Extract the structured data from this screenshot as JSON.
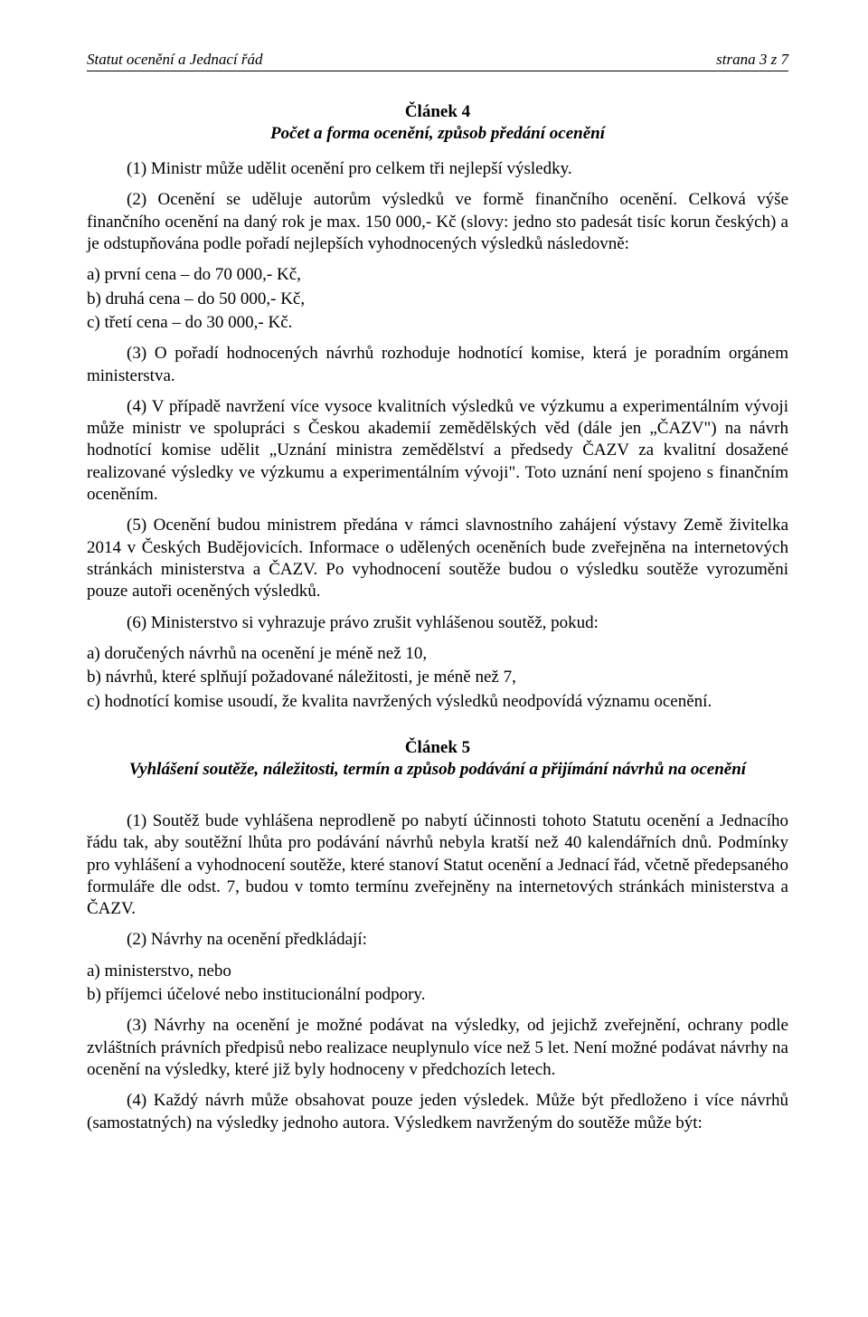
{
  "header": {
    "left": "Statut ocenění a Jednací řád",
    "right": "strana 3 z 7"
  },
  "article4": {
    "heading": "Článek 4",
    "subtitle": "Počet a forma ocenění, způsob předání ocenění",
    "p1": "(1)  Ministr může udělit ocenění pro celkem tři nejlepší výsledky.",
    "p2": "(2)  Ocenění se uděluje autorům výsledků ve formě finančního ocenění. Celková výše finančního ocenění na daný rok je max. 150 000,- Kč (slovy: jedno sto padesát tisíc korun českých) a je odstupňována podle pořadí nejlepších vyhodnocených výsledků následovně:",
    "awards": [
      "a)   první cena – do 70 000,- Kč,",
      "b)   druhá cena – do 50 000,- Kč,",
      "c)   třetí cena –   do 30 000,- Kč."
    ],
    "p3": "(3)  O pořadí hodnocených návrhů rozhoduje hodnotící komise, která je poradním orgánem ministerstva.",
    "p4": "(4)  V případě  navržení  více  vysoce  kvalitních  výsledků  ve  výzkumu a experimentálním vývoji může ministr ve spolupráci s Českou akademií zemědělských věd (dále jen „ČAZV\") na návrh hodnotící komise udělit „Uznání ministra zemědělství a předsedy ČAZV za kvalitní dosažené realizované výsledky ve výzkumu a experimentálním vývoji\". Toto uznání není spojeno s finančním oceněním.",
    "p5": "(5)  Ocenění budou ministrem předána v rámci slavnostního zahájení výstavy Země živitelka 2014 v Českých Budějovicích. Informace o udělených oceněních bude zveřejněna na internetových stránkách ministerstva a ČAZV. Po vyhodnocení soutěže budou o výsledku soutěže vyrozuměni pouze autoři oceněných výsledků.",
    "p6": "(6)  Ministerstvo si vyhrazuje právo zrušit vyhlášenou soutěž, pokud:",
    "conditions": [
      "a)   doručených návrhů na ocenění je méně než 10,",
      "b)   návrhů, které splňují požadované náležitosti, je méně než 7,",
      "c)   hodnotící komise usoudí, že kvalita navržených výsledků neodpovídá významu ocenění."
    ]
  },
  "article5": {
    "heading": "Článek 5",
    "subtitle": "Vyhlášení soutěže, náležitosti, termín a způsob podávání a přijímání návrhů na ocenění",
    "p1": "(1)  Soutěž bude vyhlášena neprodleně po nabytí účinnosti tohoto Statutu ocenění a Jednacího řádu tak, aby soutěžní lhůta pro podávání návrhů nebyla kratší než 40 kalendářních dnů. Podmínky pro vyhlášení a vyhodnocení soutěže, které stanoví Statut ocenění a Jednací řád, včetně předepsaného formuláře dle odst. 7, budou v tomto termínu zveřejněny na internetových stránkách ministerstva a ČAZV.",
    "p2": "(2)  Návrhy na ocenění předkládají:",
    "submitters": [
      "a)   ministerstvo, nebo",
      "b)   příjemci účelové nebo institucionální podpory."
    ],
    "p3": "(3)  Návrhy na ocenění je možné podávat na výsledky, od jejichž zveřejnění, ochrany podle zvláštních právních předpisů nebo realizace neuplynulo více než 5 let. Není možné podávat návrhy na ocenění na výsledky, které již byly hodnoceny v předchozích letech.",
    "p4": "(4)  Každý návrh může obsahovat pouze jeden výsledek. Může být předloženo i více návrhů (samostatných) na výsledky jednoho autora. Výsledkem navrženým do soutěže může být:"
  }
}
